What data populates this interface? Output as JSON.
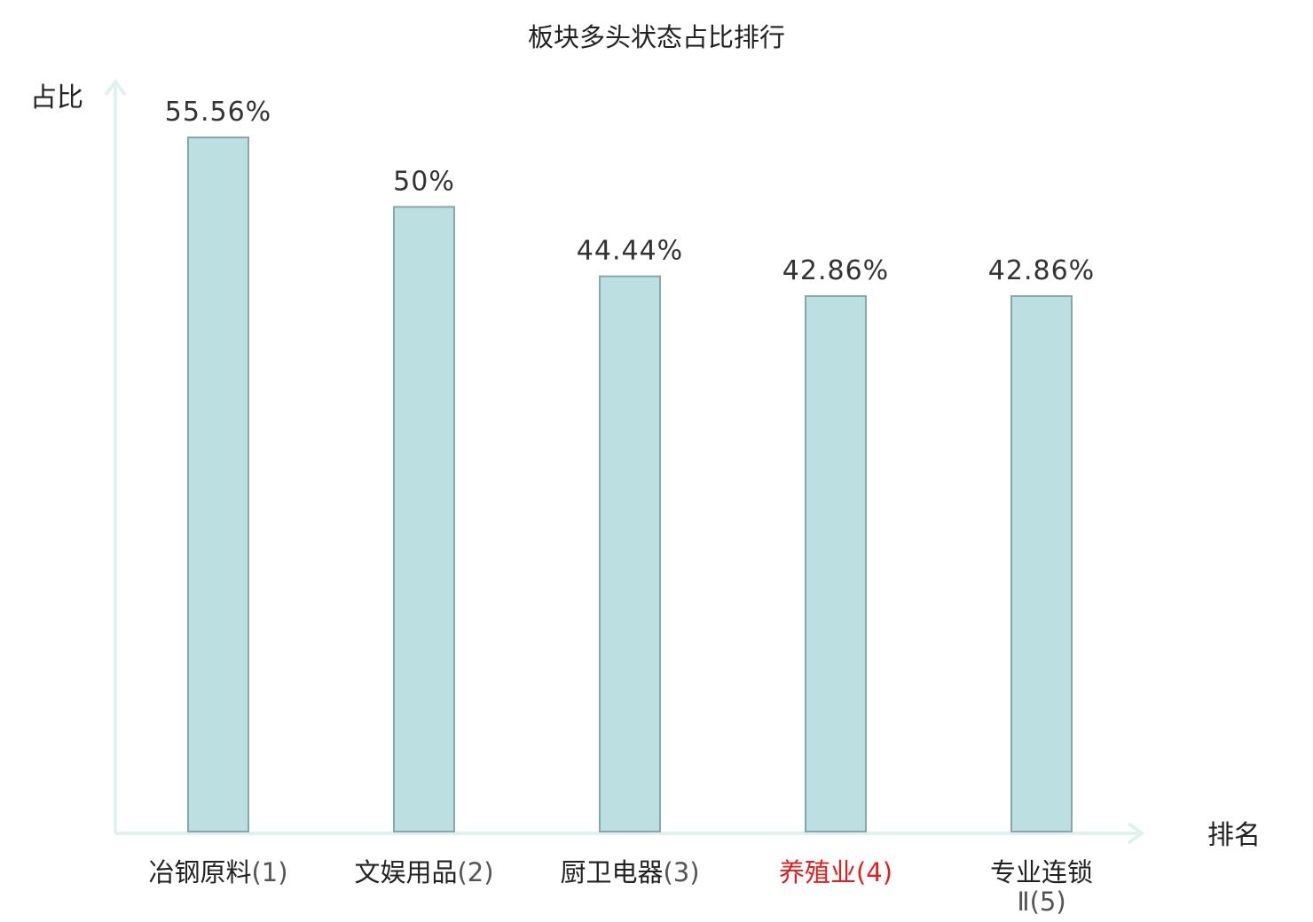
{
  "chart_data": {
    "type": "bar",
    "title": "板块多头状态占比排行",
    "ylabel": "占比",
    "xlabel": "排名",
    "ylim": [
      0,
      60
    ],
    "grid": false,
    "categories": [
      {
        "name": "冶钢原料",
        "rank": "(1)",
        "highlight": false
      },
      {
        "name": "文娱用品",
        "rank": "(2)",
        "highlight": false
      },
      {
        "name": "厨卫电器",
        "rank": "(3)",
        "highlight": false
      },
      {
        "name": "养殖业",
        "rank": "(4)",
        "highlight": true
      },
      {
        "name": "专业连锁",
        "rank": "Ⅱ(5)",
        "highlight": false
      }
    ],
    "values": [
      55.56,
      50,
      44.44,
      42.86,
      42.86
    ],
    "value_labels": [
      "55.56%",
      "50%",
      "44.44%",
      "42.86%",
      "42.86%"
    ]
  },
  "colors": {
    "bar_fill": "#bce0e2",
    "bar_stroke": "#8aa6a8",
    "axis": "#dff2ef",
    "text": "#222222",
    "rank_text": "#555555",
    "highlight": "#e02020"
  }
}
